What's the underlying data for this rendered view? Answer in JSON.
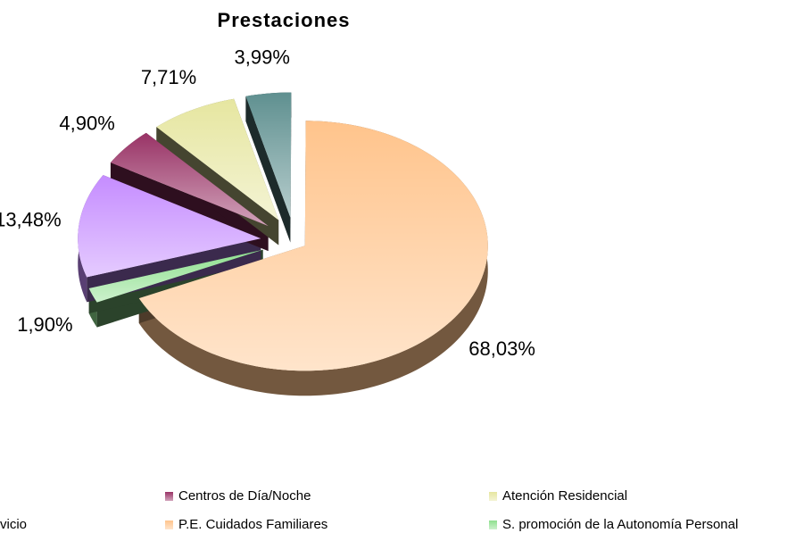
{
  "chart_data": {
    "type": "pie",
    "title": "Prestaciones",
    "series": [
      {
        "name": "P.E. Cuidados Familiares",
        "color": "#ffc48c",
        "values": [
          68.03
        ],
        "value_labels": [
          "68,03%"
        ]
      },
      {
        "name": "S. promoción de la Autonomía Personal",
        "color": "#8fe08f",
        "values": [
          1.9
        ],
        "value_labels": [
          "1,90%"
        ]
      },
      {
        "name": "vicio",
        "color": "#c58cff",
        "values": [
          13.48
        ],
        "value_labels": [
          "13,48%"
        ]
      },
      {
        "name": "Centros de Día/Noche",
        "color": "#993366",
        "values": [
          4.9
        ],
        "value_labels": [
          "4,90%"
        ]
      },
      {
        "name": "Atención Residencial",
        "color": "#e6e6a0",
        "values": [
          7.71
        ],
        "value_labels": [
          "7,71%"
        ]
      },
      {
        "name": null,
        "color": "#5f9090",
        "values": [
          3.99
        ],
        "value_labels": [
          "3,99%"
        ]
      }
    ]
  }
}
